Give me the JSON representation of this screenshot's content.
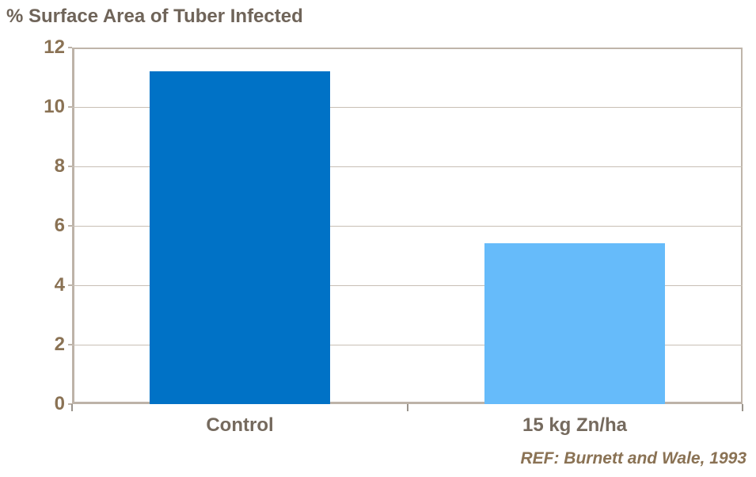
{
  "chart_data": {
    "type": "bar",
    "title": "% Surface Area of Tuber Infected",
    "categories": [
      "Control",
      "15 kg Zn/ha"
    ],
    "values": [
      11.2,
      5.4
    ],
    "bar_colors": [
      "#0072C6",
      "#66BBFA"
    ],
    "xlabel": "",
    "ylabel": "% Surface Area of Tuber Infected",
    "ylim": [
      0,
      12
    ],
    "yticks": [
      0,
      2,
      4,
      6,
      8,
      10,
      12
    ],
    "grid": "horizontal",
    "legend": "none",
    "annotation": "REF: Burnett and Wale, 1993"
  },
  "colors": {
    "title_text": "#6F6459",
    "tick_text": "#8A7254",
    "category_text": "#756A5E",
    "ref_text": "#8A7254",
    "axis_line": "#BDB3A8",
    "gridline": "#C8BFB5",
    "background": "#FFFFFF"
  }
}
